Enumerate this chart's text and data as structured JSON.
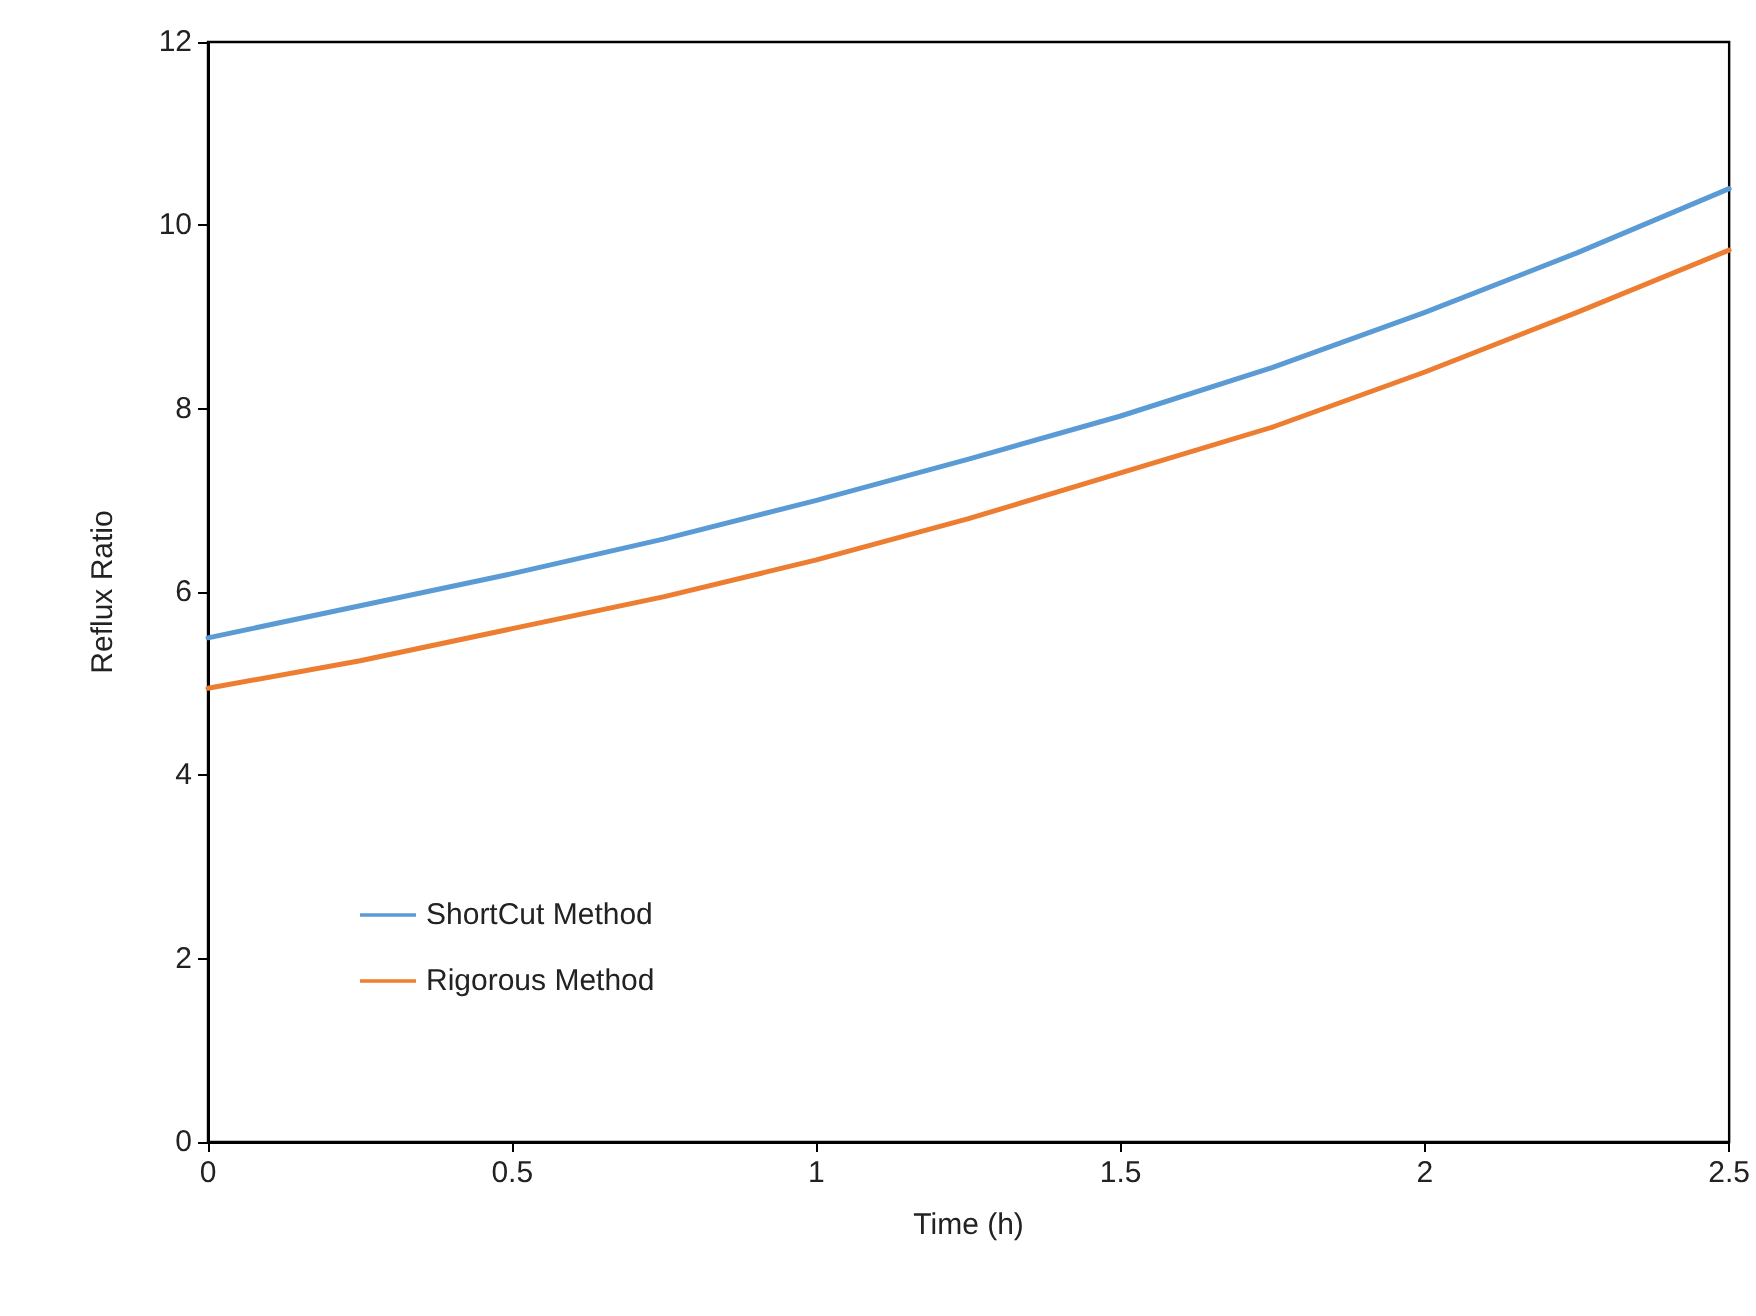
{
  "chart_data": {
    "type": "line",
    "xlabel": "Time (h)",
    "ylabel": "Reflux Ratio",
    "x": [
      0,
      0.25,
      0.5,
      0.75,
      1,
      1.25,
      1.5,
      1.75,
      2,
      2.25,
      2.5
    ],
    "series": [
      {
        "name": "ShortCut Method",
        "color": "#5b9bd5",
        "values": [
          5.5,
          5.85,
          6.2,
          6.58,
          7.0,
          7.45,
          7.92,
          8.45,
          9.05,
          9.7,
          10.4
        ]
      },
      {
        "name": "Rigorous Method",
        "color": "#ed7d31",
        "values": [
          4.95,
          5.25,
          5.6,
          5.95,
          6.35,
          6.8,
          7.3,
          7.8,
          8.4,
          9.05,
          9.73
        ]
      }
    ],
    "xlim": [
      0,
      2.5
    ],
    "xticks": [
      0,
      0.5,
      1,
      1.5,
      2,
      2.5
    ],
    "ylim": [
      0,
      12
    ],
    "yticks": [
      0,
      2,
      4,
      6,
      8,
      10,
      12
    ],
    "grid": false,
    "legend": "bottom left",
    "marker": "none",
    "line_style": "solid"
  }
}
